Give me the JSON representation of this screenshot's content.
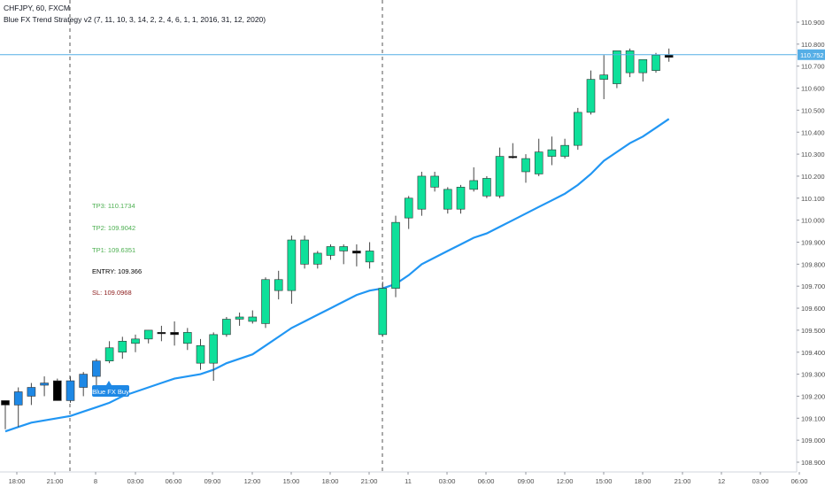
{
  "header": {
    "symbol_line": "CHFJPY, 60, FXCM",
    "indicator_line": "Blue FX Trend Strategy v2 (7, 11, 10, 3, 14, 2, 2, 4, 6, 1, 1, 2016, 31, 12, 2020)"
  },
  "trade_levels": {
    "tp3": "TP3: 110.1734",
    "tp2": "TP2: 109.9042",
    "tp1": "TP1: 109.6351",
    "entry": "ENTRY: 109.366",
    "sl": "SL: 109.0968"
  },
  "colors": {
    "up": "#0ee09a",
    "down": "#0ee09a",
    "blue_signal": "#1e88e5",
    "neutral": "#000000",
    "ma_line": "#2196f3",
    "price_line": "#55aee6",
    "entry_text": "#000000",
    "tp_text": "#4caf50",
    "sl_text": "#8b1a1a"
  },
  "chart_data": {
    "type": "candlestick",
    "y_axis": {
      "ticks": [
        "108.900",
        "109.000",
        "109.100",
        "109.200",
        "109.300",
        "109.400",
        "109.500",
        "109.600",
        "109.700",
        "109.800",
        "109.900",
        "110.000",
        "110.100",
        "110.200",
        "110.300",
        "110.400",
        "110.500",
        "110.600",
        "110.700",
        "110.800",
        "110.900"
      ],
      "range": [
        108.85,
        110.95
      ]
    },
    "x_axis": {
      "tick_labels": [
        "18:00",
        "21:00",
        "8",
        "03:00",
        "06:00",
        "09:00",
        "12:00",
        "15:00",
        "18:00",
        "21:00",
        "11",
        "03:00",
        "06:00",
        "09:00",
        "12:00",
        "15:00",
        "18:00",
        "21:00",
        "12",
        "03:00",
        "06:00"
      ]
    },
    "current_price": "110.752",
    "signal_label": "Blue FX Buy",
    "candles": [
      {
        "o": 109.16,
        "h": 109.18,
        "l": 109.05,
        "c": 109.18,
        "color": "neutral"
      },
      {
        "o": 109.16,
        "h": 109.24,
        "l": 109.06,
        "c": 109.22,
        "color": "blue"
      },
      {
        "o": 109.2,
        "h": 109.26,
        "l": 109.16,
        "c": 109.24,
        "color": "blue"
      },
      {
        "o": 109.25,
        "h": 109.29,
        "l": 109.2,
        "c": 109.26,
        "color": "blue"
      },
      {
        "o": 109.27,
        "h": 109.28,
        "l": 109.18,
        "c": 109.18,
        "color": "neutral"
      },
      {
        "o": 109.18,
        "h": 109.29,
        "l": 109.17,
        "c": 109.27,
        "color": "blue"
      },
      {
        "o": 109.24,
        "h": 109.31,
        "l": 109.2,
        "c": 109.3,
        "color": "blue"
      },
      {
        "o": 109.29,
        "h": 109.37,
        "l": 109.22,
        "c": 109.36,
        "color": "blue"
      },
      {
        "o": 109.36,
        "h": 109.45,
        "l": 109.35,
        "c": 109.42,
        "color": "up"
      },
      {
        "o": 109.4,
        "h": 109.47,
        "l": 109.37,
        "c": 109.45,
        "color": "up"
      },
      {
        "o": 109.44,
        "h": 109.48,
        "l": 109.4,
        "c": 109.46,
        "color": "up"
      },
      {
        "o": 109.46,
        "h": 109.5,
        "l": 109.44,
        "c": 109.5,
        "color": "up"
      },
      {
        "o": 109.49,
        "h": 109.52,
        "l": 109.45,
        "c": 109.49,
        "color": "neutral"
      },
      {
        "o": 109.49,
        "h": 109.54,
        "l": 109.43,
        "c": 109.48,
        "color": "neutral"
      },
      {
        "o": 109.49,
        "h": 109.51,
        "l": 109.41,
        "c": 109.44,
        "color": "down"
      },
      {
        "o": 109.43,
        "h": 109.46,
        "l": 109.32,
        "c": 109.35,
        "color": "down"
      },
      {
        "o": 109.35,
        "h": 109.49,
        "l": 109.27,
        "c": 109.48,
        "color": "up"
      },
      {
        "o": 109.48,
        "h": 109.56,
        "l": 109.47,
        "c": 109.55,
        "color": "up"
      },
      {
        "o": 109.55,
        "h": 109.58,
        "l": 109.52,
        "c": 109.56,
        "color": "up"
      },
      {
        "o": 109.56,
        "h": 109.59,
        "l": 109.53,
        "c": 109.54,
        "color": "down"
      },
      {
        "o": 109.53,
        "h": 109.74,
        "l": 109.51,
        "c": 109.73,
        "color": "up"
      },
      {
        "o": 109.73,
        "h": 109.77,
        "l": 109.64,
        "c": 109.68,
        "color": "down"
      },
      {
        "o": 109.68,
        "h": 109.93,
        "l": 109.62,
        "c": 109.91,
        "color": "up"
      },
      {
        "o": 109.91,
        "h": 109.93,
        "l": 109.78,
        "c": 109.8,
        "color": "down"
      },
      {
        "o": 109.8,
        "h": 109.86,
        "l": 109.78,
        "c": 109.85,
        "color": "up"
      },
      {
        "o": 109.84,
        "h": 109.89,
        "l": 109.82,
        "c": 109.88,
        "color": "up"
      },
      {
        "o": 109.88,
        "h": 109.89,
        "l": 109.8,
        "c": 109.86,
        "color": "down"
      },
      {
        "o": 109.86,
        "h": 109.89,
        "l": 109.79,
        "c": 109.85,
        "color": "neutral"
      },
      {
        "o": 109.86,
        "h": 109.9,
        "l": 109.78,
        "c": 109.81,
        "color": "down"
      },
      {
        "o": 109.69,
        "h": 109.72,
        "l": 109.47,
        "c": 109.48,
        "color": "down"
      },
      {
        "o": 109.69,
        "h": 110.02,
        "l": 109.65,
        "c": 109.99,
        "color": "up"
      },
      {
        "o": 110.01,
        "h": 110.11,
        "l": 109.96,
        "c": 110.1,
        "color": "up"
      },
      {
        "o": 110.05,
        "h": 110.22,
        "l": 110.02,
        "c": 110.2,
        "color": "up"
      },
      {
        "o": 110.2,
        "h": 110.22,
        "l": 110.13,
        "c": 110.15,
        "color": "down"
      },
      {
        "o": 110.14,
        "h": 110.15,
        "l": 110.03,
        "c": 110.05,
        "color": "down"
      },
      {
        "o": 110.15,
        "h": 110.16,
        "l": 110.03,
        "c": 110.05,
        "color": "down"
      },
      {
        "o": 110.14,
        "h": 110.24,
        "l": 110.13,
        "c": 110.18,
        "color": "up"
      },
      {
        "o": 110.19,
        "h": 110.2,
        "l": 110.1,
        "c": 110.11,
        "color": "down"
      },
      {
        "o": 110.11,
        "h": 110.33,
        "l": 110.1,
        "c": 110.29,
        "color": "up"
      },
      {
        "o": 110.29,
        "h": 110.35,
        "l": 110.28,
        "c": 110.29,
        "color": "neutral"
      },
      {
        "o": 110.28,
        "h": 110.3,
        "l": 110.17,
        "c": 110.22,
        "color": "down"
      },
      {
        "o": 110.21,
        "h": 110.37,
        "l": 110.2,
        "c": 110.31,
        "color": "up"
      },
      {
        "o": 110.29,
        "h": 110.38,
        "l": 110.25,
        "c": 110.32,
        "color": "up"
      },
      {
        "o": 110.29,
        "h": 110.37,
        "l": 110.28,
        "c": 110.34,
        "color": "up"
      },
      {
        "o": 110.34,
        "h": 110.51,
        "l": 110.32,
        "c": 110.49,
        "color": "up"
      },
      {
        "o": 110.49,
        "h": 110.68,
        "l": 110.48,
        "c": 110.64,
        "color": "up"
      },
      {
        "o": 110.64,
        "h": 110.75,
        "l": 110.55,
        "c": 110.66,
        "color": "down"
      },
      {
        "o": 110.62,
        "h": 110.77,
        "l": 110.6,
        "c": 110.77,
        "color": "up"
      },
      {
        "o": 110.77,
        "h": 110.78,
        "l": 110.65,
        "c": 110.67,
        "color": "down"
      },
      {
        "o": 110.67,
        "h": 110.73,
        "l": 110.63,
        "c": 110.73,
        "color": "up"
      },
      {
        "o": 110.68,
        "h": 110.76,
        "l": 110.67,
        "c": 110.75,
        "color": "up"
      },
      {
        "o": 110.74,
        "h": 110.78,
        "l": 110.72,
        "c": 110.75,
        "color": "neutral"
      }
    ],
    "ma_values": [
      109.04,
      109.06,
      109.08,
      109.09,
      109.1,
      109.11,
      109.13,
      109.15,
      109.17,
      109.2,
      109.22,
      109.24,
      109.26,
      109.28,
      109.29,
      109.3,
      109.32,
      109.35,
      109.37,
      109.39,
      109.43,
      109.47,
      109.51,
      109.54,
      109.57,
      109.6,
      109.63,
      109.66,
      109.68,
      109.69,
      109.71,
      109.75,
      109.8,
      109.83,
      109.86,
      109.89,
      109.92,
      109.94,
      109.97,
      110.0,
      110.03,
      110.06,
      110.09,
      110.12,
      110.16,
      110.21,
      110.27,
      110.31,
      110.35,
      110.38,
      110.42,
      110.46
    ]
  }
}
